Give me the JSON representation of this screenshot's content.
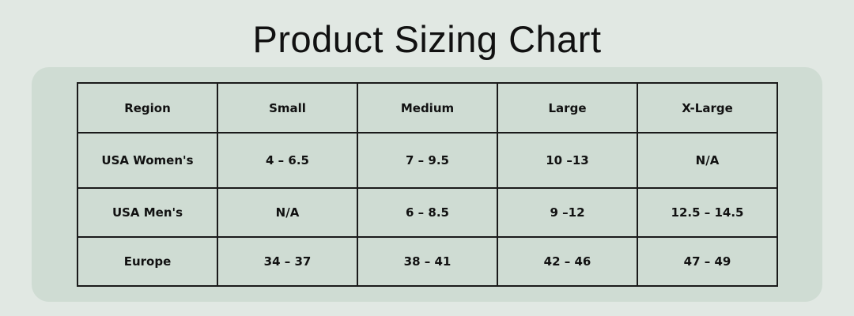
{
  "header": {
    "title": "Product Sizing Chart"
  },
  "table": {
    "columns": [
      "Region",
      "Small",
      "Medium",
      "Large",
      "X-Large"
    ],
    "rows": [
      [
        "USA Women's",
        "4 – 6.5",
        "7 – 9.5",
        "10 –13",
        "N/A"
      ],
      [
        "USA Men's",
        "N/A",
        "6 – 8.5",
        "9 –12",
        "12.5 – 14.5"
      ],
      [
        "Europe",
        "34 – 37",
        "38 – 41",
        "42 – 46",
        "47 – 49"
      ]
    ]
  }
}
